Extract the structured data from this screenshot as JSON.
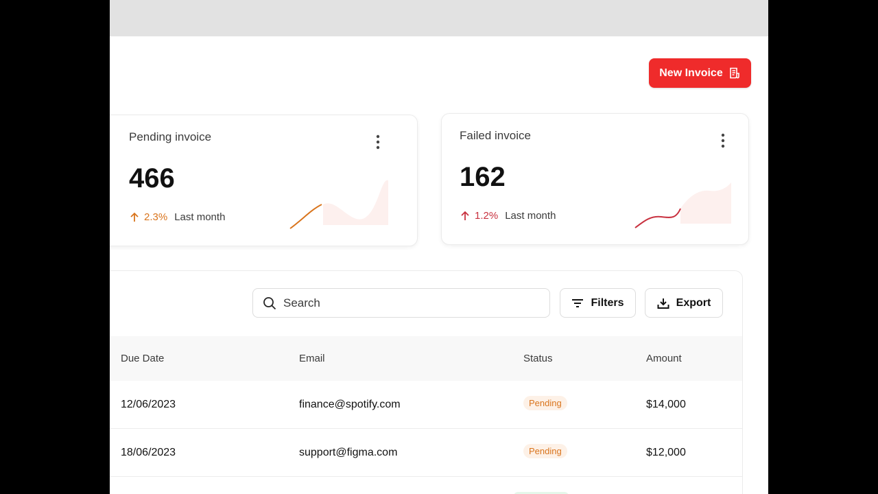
{
  "header": {
    "new_invoice_label": "New Invoice"
  },
  "cards": [
    {
      "title": "Pending invoice",
      "value": "466",
      "trend_pct": "2.3%",
      "trend_label": "Last month",
      "accent": "#d9741c"
    },
    {
      "title": "Failed invoice",
      "value": "162",
      "trend_pct": "1.2%",
      "trend_label": "Last month",
      "accent": "#c8313f"
    }
  ],
  "toolbar": {
    "search_placeholder": "Search",
    "filters_label": "Filters",
    "export_label": "Export"
  },
  "table": {
    "columns": [
      "Due Date",
      "Email",
      "Status",
      "Amount"
    ],
    "rows": [
      {
        "due_date": "12/06/2023",
        "email": "finance@spotify.com",
        "status": "Pending",
        "amount": "$14,000"
      },
      {
        "due_date": "18/06/2023",
        "email": "support@figma.com",
        "status": "Pending",
        "amount": "$12,000"
      }
    ]
  },
  "colors": {
    "brand_red": "#ef2b2b",
    "pending_orange": "#d9741c",
    "failed_red": "#c8313f"
  },
  "icons": [
    "invoice-doc-icon",
    "kebab-menu-icon",
    "arrow-up-icon",
    "search-icon",
    "filter-icon",
    "download-icon"
  ]
}
